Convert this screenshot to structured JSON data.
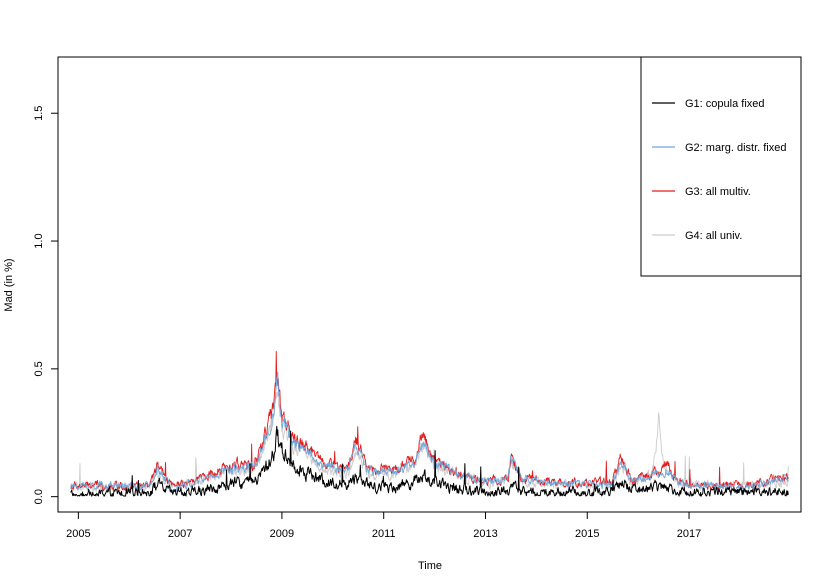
{
  "chart_data": {
    "type": "line",
    "title": "",
    "xlabel": "Time",
    "ylabel": "Mad (in %)",
    "xlim": [
      2004.6,
      2019.2
    ],
    "ylim": [
      -0.06,
      1.72
    ],
    "x_ticks": [
      2005,
      2007,
      2009,
      2011,
      2013,
      2015,
      2017
    ],
    "x_tick_labels": [
      "2005",
      "2007",
      "2009",
      "2011",
      "2013",
      "2015",
      "2017"
    ],
    "y_ticks": [
      0.0,
      0.5,
      1.0,
      1.5
    ],
    "y_tick_labels": [
      "0.0",
      "0.5",
      "1.0",
      "1.5"
    ],
    "x_start": 2004.85,
    "x_end": 2018.95,
    "grid": false,
    "legend_position": "top-right",
    "series": [
      {
        "name": "G1: copula fixed",
        "color": "#000000",
        "profile": [
          [
            2004.85,
            0.01
          ],
          [
            2005.5,
            0.012
          ],
          [
            2006.4,
            0.015
          ],
          [
            2006.55,
            0.05
          ],
          [
            2006.8,
            0.015
          ],
          [
            2007.2,
            0.02
          ],
          [
            2007.6,
            0.03
          ],
          [
            2008.0,
            0.05
          ],
          [
            2008.5,
            0.06
          ],
          [
            2008.8,
            0.15
          ],
          [
            2008.92,
            0.24
          ],
          [
            2009.0,
            0.18
          ],
          [
            2009.3,
            0.12
          ],
          [
            2009.8,
            0.06
          ],
          [
            2010.3,
            0.05
          ],
          [
            2010.45,
            0.08
          ],
          [
            2010.8,
            0.04
          ],
          [
            2011.2,
            0.04
          ],
          [
            2011.6,
            0.06
          ],
          [
            2011.75,
            0.09
          ],
          [
            2012.0,
            0.05
          ],
          [
            2012.5,
            0.03
          ],
          [
            2013.0,
            0.02
          ],
          [
            2013.45,
            0.02
          ],
          [
            2013.5,
            0.05
          ],
          [
            2013.7,
            0.02
          ],
          [
            2014.5,
            0.015
          ],
          [
            2015.5,
            0.02
          ],
          [
            2015.65,
            0.05
          ],
          [
            2015.9,
            0.03
          ],
          [
            2016.4,
            0.04
          ],
          [
            2016.55,
            0.05
          ],
          [
            2016.8,
            0.02
          ],
          [
            2017.5,
            0.02
          ],
          [
            2018.2,
            0.015
          ],
          [
            2018.95,
            0.02
          ]
        ],
        "noise": 0.028,
        "spike_rate": 0.012,
        "spike_scale": 0.1
      },
      {
        "name": "G2: marg. distr. fixed",
        "color": "#6fa8dc",
        "profile": [
          [
            2004.85,
            0.04
          ],
          [
            2005.5,
            0.045
          ],
          [
            2006.4,
            0.04
          ],
          [
            2006.55,
            0.11
          ],
          [
            2006.8,
            0.04
          ],
          [
            2007.2,
            0.05
          ],
          [
            2007.6,
            0.08
          ],
          [
            2008.0,
            0.11
          ],
          [
            2008.5,
            0.13
          ],
          [
            2008.8,
            0.3
          ],
          [
            2008.92,
            0.44
          ],
          [
            2009.0,
            0.3
          ],
          [
            2009.2,
            0.22
          ],
          [
            2009.5,
            0.18
          ],
          [
            2009.8,
            0.12
          ],
          [
            2010.3,
            0.1
          ],
          [
            2010.45,
            0.2
          ],
          [
            2010.7,
            0.1
          ],
          [
            2011.2,
            0.1
          ],
          [
            2011.6,
            0.13
          ],
          [
            2011.75,
            0.21
          ],
          [
            2012.0,
            0.13
          ],
          [
            2012.5,
            0.09
          ],
          [
            2013.0,
            0.06
          ],
          [
            2013.45,
            0.07
          ],
          [
            2013.5,
            0.16
          ],
          [
            2013.7,
            0.07
          ],
          [
            2014.5,
            0.05
          ],
          [
            2015.5,
            0.05
          ],
          [
            2015.65,
            0.13
          ],
          [
            2015.9,
            0.06
          ],
          [
            2016.4,
            0.09
          ],
          [
            2016.55,
            0.11
          ],
          [
            2016.8,
            0.05
          ],
          [
            2017.5,
            0.04
          ],
          [
            2018.2,
            0.04
          ],
          [
            2018.95,
            0.07
          ]
        ],
        "noise": 0.018,
        "spike_rate": 0.004,
        "spike_scale": 0.05
      },
      {
        "name": "G3: all multiv.",
        "color": "#e41a1c",
        "profile": [
          [
            2004.85,
            0.04
          ],
          [
            2005.5,
            0.045
          ],
          [
            2006.4,
            0.04
          ],
          [
            2006.55,
            0.12
          ],
          [
            2006.8,
            0.045
          ],
          [
            2007.2,
            0.055
          ],
          [
            2007.6,
            0.09
          ],
          [
            2008.0,
            0.12
          ],
          [
            2008.5,
            0.14
          ],
          [
            2008.8,
            0.32
          ],
          [
            2008.92,
            0.47
          ],
          [
            2009.0,
            0.32
          ],
          [
            2009.2,
            0.24
          ],
          [
            2009.5,
            0.2
          ],
          [
            2009.8,
            0.13
          ],
          [
            2010.3,
            0.11
          ],
          [
            2010.45,
            0.22
          ],
          [
            2010.7,
            0.11
          ],
          [
            2011.2,
            0.11
          ],
          [
            2011.6,
            0.14
          ],
          [
            2011.75,
            0.24
          ],
          [
            2012.0,
            0.14
          ],
          [
            2012.5,
            0.09
          ],
          [
            2013.0,
            0.065
          ],
          [
            2013.45,
            0.07
          ],
          [
            2013.5,
            0.16
          ],
          [
            2013.7,
            0.07
          ],
          [
            2014.5,
            0.055
          ],
          [
            2015.5,
            0.055
          ],
          [
            2015.65,
            0.15
          ],
          [
            2015.9,
            0.06
          ],
          [
            2016.4,
            0.1
          ],
          [
            2016.55,
            0.13
          ],
          [
            2016.8,
            0.055
          ],
          [
            2017.5,
            0.045
          ],
          [
            2018.2,
            0.045
          ],
          [
            2018.95,
            0.08
          ]
        ],
        "noise": 0.02,
        "spike_rate": 0.008,
        "spike_scale": 0.09
      },
      {
        "name": "G4: all univ.",
        "color": "#cccccc",
        "profile": [
          [
            2004.85,
            0.03
          ],
          [
            2005.5,
            0.035
          ],
          [
            2006.4,
            0.035
          ],
          [
            2006.55,
            0.1
          ],
          [
            2006.8,
            0.04
          ],
          [
            2007.2,
            0.05
          ],
          [
            2007.6,
            0.08
          ],
          [
            2008.0,
            0.1
          ],
          [
            2008.5,
            0.12
          ],
          [
            2008.8,
            0.28
          ],
          [
            2008.92,
            0.42
          ],
          [
            2009.0,
            0.28
          ],
          [
            2009.2,
            0.2
          ],
          [
            2009.5,
            0.17
          ],
          [
            2009.8,
            0.11
          ],
          [
            2010.3,
            0.09
          ],
          [
            2010.45,
            0.19
          ],
          [
            2010.7,
            0.09
          ],
          [
            2011.2,
            0.09
          ],
          [
            2011.6,
            0.12
          ],
          [
            2011.75,
            0.2
          ],
          [
            2012.0,
            0.12
          ],
          [
            2012.5,
            0.08
          ],
          [
            2013.0,
            0.05
          ],
          [
            2013.45,
            0.06
          ],
          [
            2013.5,
            0.14
          ],
          [
            2013.7,
            0.06
          ],
          [
            2014.5,
            0.045
          ],
          [
            2015.5,
            0.045
          ],
          [
            2015.65,
            0.12
          ],
          [
            2015.9,
            0.05
          ],
          [
            2016.3,
            0.12
          ],
          [
            2016.4,
            0.3
          ],
          [
            2016.5,
            0.12
          ],
          [
            2016.8,
            0.05
          ],
          [
            2017.5,
            0.04
          ],
          [
            2018.2,
            0.035
          ],
          [
            2018.95,
            0.06
          ]
        ],
        "noise": 0.022,
        "spike_rate": 0.012,
        "spike_scale": 0.09
      }
    ]
  }
}
